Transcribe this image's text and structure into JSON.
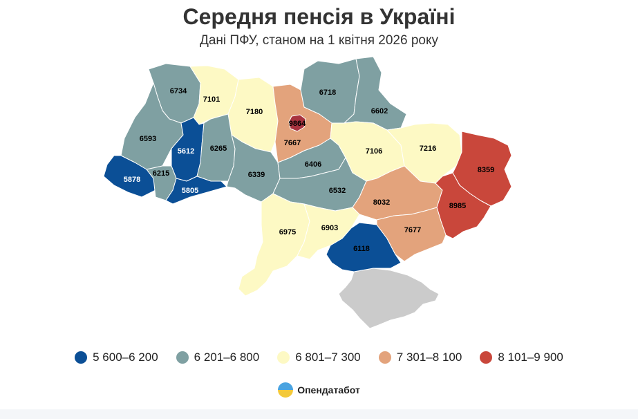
{
  "header": {
    "title": "Середня пенсія в Україні",
    "subtitle": "Дані ПФУ, станом на 1 квітня 2026 року"
  },
  "colors": {
    "bin1": "#0b4f96",
    "bin2": "#7fa0a2",
    "bin3": "#fdf9c4",
    "bin4": "#e3a37c",
    "bin5": "#c9473b",
    "crimea": "#cbcbcb",
    "kyiv_city": "#a8333f"
  },
  "legend": [
    {
      "label": "5 600–6 200",
      "color": "#0b4f96"
    },
    {
      "label": "6 201–6 800",
      "color": "#7fa0a2"
    },
    {
      "label": "6 801–7 300",
      "color": "#fdf9c4"
    },
    {
      "label": "7 301–8 100",
      "color": "#e3a37c"
    },
    {
      "label": "8 101–9 900",
      "color": "#c9473b"
    }
  ],
  "regions": {
    "volyn": "6734",
    "rivne": "7101",
    "zhytomyr": "7180",
    "kyiv_oblast": "7667",
    "kyiv_city": "9864",
    "chernihiv": "6718",
    "sumy": "6602",
    "lviv": "6593",
    "ternopil": "5612",
    "khmelnytskyi": "6265",
    "zakarpattia": "5878",
    "ivano_frankivsk": "6215",
    "chernivtsi": "5805",
    "vinnytsia": "6339",
    "cherkasy": "6406",
    "poltava": "7106",
    "kharkiv": "7216",
    "luhansk": "8359",
    "kirovohrad": "6532",
    "dnipro": "8032",
    "donetsk": "8985",
    "odesa": "6975",
    "mykolaiv": "6903",
    "kherson": "6118",
    "zaporizhzhia": "7677"
  },
  "brand": {
    "name": "Опендатабот",
    "logo_icon": "opendatabot-logo-icon"
  }
}
